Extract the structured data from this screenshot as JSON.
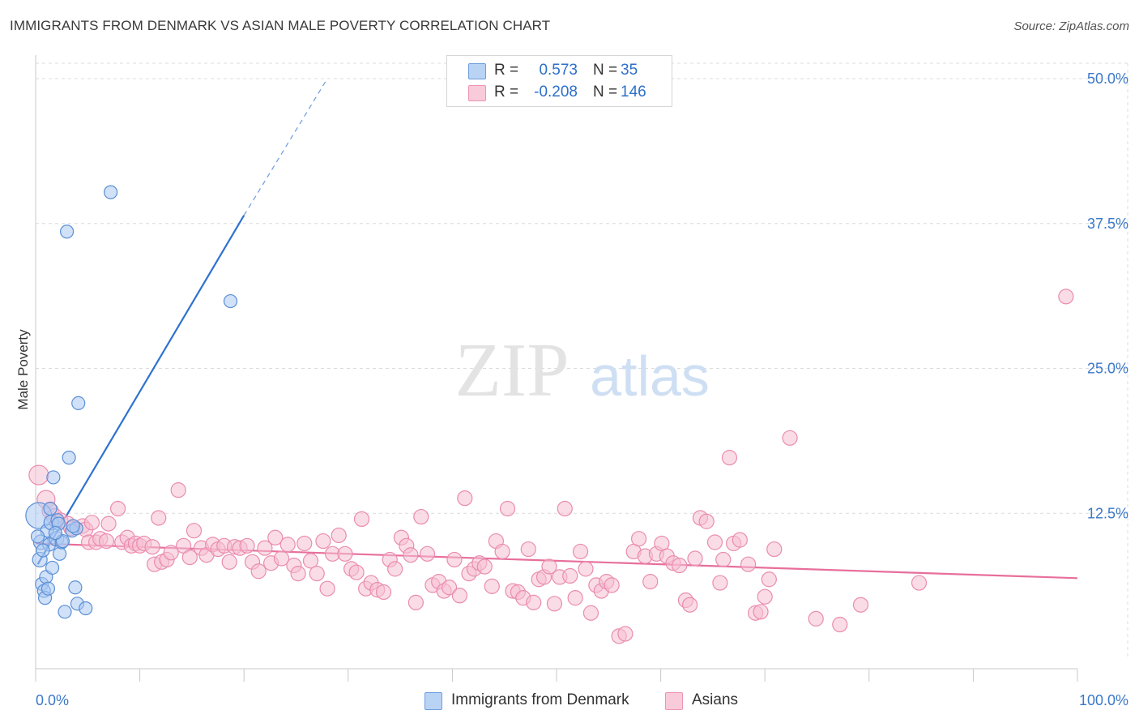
{
  "title": "IMMIGRANTS FROM DENMARK VS ASIAN MALE POVERTY CORRELATION CHART",
  "source": "Source: ZipAtlas.com",
  "watermark": {
    "zip": "ZIP",
    "atlas": "atlas"
  },
  "legend": {
    "r_label": "R =",
    "n_label": "N =",
    "rows": [
      {
        "r": "0.573",
        "n": "35"
      },
      {
        "r": "-0.208",
        "n": "146"
      }
    ]
  },
  "bottom_legend": [
    "Immigrants from Denmark",
    "Asians"
  ],
  "colors": {
    "blue_fill": "#a9c9f2",
    "blue_stroke": "#5b8fd6",
    "blue_line": "#2f72d0",
    "pink_fill": "#f6bfd2",
    "pink_stroke": "#ea8cae",
    "pink_line": "#e76f9b",
    "axis_label": "#3b78c9",
    "grid": "#dcdcdc"
  },
  "chart_data": {
    "type": "scatter",
    "title": "IMMIGRANTS FROM DENMARK VS ASIAN MALE POVERTY CORRELATION CHART",
    "xlabel": "",
    "ylabel": "Male Poverty",
    "xlim": [
      0,
      100
    ],
    "ylim": [
      0,
      50
    ],
    "x_tick_labels": [
      "0.0%",
      "100.0%"
    ],
    "y_ticks": [
      12.5,
      25.0,
      37.5,
      50.0
    ],
    "y_tick_labels": [
      "12.5%",
      "25.0%",
      "37.5%",
      "50.0%"
    ],
    "series": [
      {
        "name": "Immigrants from Denmark",
        "R": 0.573,
        "N": 35,
        "trend": {
          "x0": 0.2,
          "y0": 8.1,
          "x1": 20.0,
          "y1": 38.2,
          "dash_x1": 28.0,
          "dash_y1": 50.0
        },
        "points": [
          [
            0.3,
            12.3,
            16
          ],
          [
            0.5,
            10.0,
            9
          ],
          [
            0.4,
            8.5,
            9
          ],
          [
            0.6,
            6.4,
            8
          ],
          [
            0.8,
            5.8,
            8
          ],
          [
            1.0,
            7.0,
            8
          ],
          [
            1.1,
            11.0,
            8
          ],
          [
            1.3,
            9.8,
            8
          ],
          [
            1.5,
            11.7,
            9
          ],
          [
            1.7,
            15.6,
            8
          ],
          [
            1.6,
            7.8,
            8
          ],
          [
            2.0,
            10.3,
            9
          ],
          [
            2.1,
            11.9,
            8
          ],
          [
            2.3,
            9.0,
            8
          ],
          [
            2.5,
            10.0,
            8
          ],
          [
            2.8,
            4.0,
            8
          ],
          [
            3.2,
            17.3,
            8
          ],
          [
            3.0,
            36.8,
            8
          ],
          [
            3.5,
            11.0,
            8
          ],
          [
            3.8,
            6.1,
            8
          ],
          [
            4.1,
            22.0,
            8
          ],
          [
            4.0,
            4.7,
            8
          ],
          [
            4.8,
            4.3,
            8
          ],
          [
            7.2,
            40.2,
            8
          ],
          [
            18.7,
            30.8,
            8
          ],
          [
            0.9,
            5.2,
            8
          ],
          [
            1.2,
            6.0,
            8
          ],
          [
            2.6,
            10.1,
            8
          ],
          [
            3.9,
            11.2,
            8
          ],
          [
            1.4,
            12.9,
            8
          ],
          [
            0.7,
            9.3,
            8
          ],
          [
            2.2,
            11.6,
            8
          ],
          [
            0.2,
            10.5,
            8
          ],
          [
            1.9,
            10.8,
            8
          ],
          [
            3.6,
            11.4,
            8
          ]
        ]
      },
      {
        "name": "Asians",
        "R": -0.208,
        "N": 146,
        "trend": {
          "x0": 0.0,
          "y0": 9.9,
          "x1": 100.0,
          "y1": 6.9
        },
        "points": [
          [
            0.3,
            15.8,
            12
          ],
          [
            1.0,
            13.7,
            11
          ],
          [
            1.4,
            12.7,
            10
          ],
          [
            1.8,
            12.2,
            10
          ],
          [
            2.4,
            11.9,
            9
          ],
          [
            3.1,
            11.6,
            9
          ],
          [
            3.4,
            11.2,
            9
          ],
          [
            4.5,
            11.4,
            9
          ],
          [
            4.8,
            11.1,
            9
          ],
          [
            5.4,
            11.7,
            9
          ],
          [
            5.1,
            10.0,
            9
          ],
          [
            5.8,
            10.0,
            9
          ],
          [
            6.2,
            10.3,
            9
          ],
          [
            6.8,
            10.1,
            9
          ],
          [
            7.0,
            11.6,
            9
          ],
          [
            7.9,
            12.9,
            9
          ],
          [
            8.3,
            10.0,
            9
          ],
          [
            8.8,
            10.4,
            9
          ],
          [
            9.2,
            9.7,
            9
          ],
          [
            9.6,
            9.9,
            9
          ],
          [
            10.0,
            9.7,
            9
          ],
          [
            10.4,
            9.9,
            9
          ],
          [
            11.2,
            9.6,
            9
          ],
          [
            11.4,
            8.1,
            9
          ],
          [
            11.8,
            12.1,
            9
          ],
          [
            12.1,
            8.3,
            9
          ],
          [
            12.6,
            8.5,
            9
          ],
          [
            13.0,
            9.1,
            9
          ],
          [
            13.7,
            14.5,
            9
          ],
          [
            14.2,
            9.7,
            9
          ],
          [
            14.8,
            8.7,
            9
          ],
          [
            15.2,
            11.0,
            9
          ],
          [
            15.9,
            9.5,
            9
          ],
          [
            16.4,
            8.9,
            9
          ],
          [
            17.0,
            9.8,
            9
          ],
          [
            17.5,
            9.4,
            9
          ],
          [
            18.1,
            9.7,
            9
          ],
          [
            18.6,
            8.3,
            9
          ],
          [
            19.1,
            9.6,
            9
          ],
          [
            19.6,
            9.5,
            9
          ],
          [
            20.3,
            9.7,
            9
          ],
          [
            20.8,
            8.3,
            9
          ],
          [
            21.4,
            7.5,
            9
          ],
          [
            22.0,
            9.5,
            9
          ],
          [
            22.6,
            8.2,
            9
          ],
          [
            23.0,
            10.4,
            9
          ],
          [
            23.6,
            8.6,
            9
          ],
          [
            24.2,
            9.8,
            9
          ],
          [
            24.8,
            8.0,
            9
          ],
          [
            25.2,
            7.3,
            9
          ],
          [
            25.8,
            9.9,
            9
          ],
          [
            26.4,
            8.4,
            9
          ],
          [
            27.0,
            7.3,
            9
          ],
          [
            27.6,
            10.1,
            9
          ],
          [
            28.0,
            6.0,
            9
          ],
          [
            28.5,
            9.0,
            9
          ],
          [
            29.1,
            10.6,
            9
          ],
          [
            29.7,
            9.0,
            9
          ],
          [
            30.3,
            7.7,
            9
          ],
          [
            30.8,
            7.4,
            9
          ],
          [
            31.3,
            12.0,
            9
          ],
          [
            31.7,
            6.0,
            9
          ],
          [
            32.2,
            6.5,
            9
          ],
          [
            32.8,
            5.9,
            9
          ],
          [
            33.4,
            5.7,
            9
          ],
          [
            34.0,
            8.5,
            9
          ],
          [
            34.5,
            7.7,
            9
          ],
          [
            35.1,
            10.4,
            9
          ],
          [
            35.6,
            9.7,
            9
          ],
          [
            36.0,
            8.9,
            9
          ],
          [
            36.5,
            4.8,
            9
          ],
          [
            37.0,
            12.2,
            9
          ],
          [
            37.6,
            9.0,
            9
          ],
          [
            38.1,
            6.3,
            9
          ],
          [
            38.7,
            6.6,
            9
          ],
          [
            39.2,
            5.8,
            9
          ],
          [
            39.7,
            6.1,
            9
          ],
          [
            40.2,
            8.5,
            9
          ],
          [
            40.7,
            5.4,
            9
          ],
          [
            41.2,
            13.8,
            9
          ],
          [
            41.6,
            7.3,
            9
          ],
          [
            42.1,
            7.7,
            9
          ],
          [
            42.6,
            8.2,
            9
          ],
          [
            43.1,
            7.9,
            9
          ],
          [
            43.8,
            6.2,
            9
          ],
          [
            44.2,
            10.1,
            9
          ],
          [
            44.8,
            9.2,
            9
          ],
          [
            45.3,
            12.9,
            9
          ],
          [
            45.8,
            5.8,
            9
          ],
          [
            46.3,
            5.7,
            9
          ],
          [
            46.8,
            5.2,
            9
          ],
          [
            47.3,
            9.4,
            9
          ],
          [
            47.8,
            4.8,
            9
          ],
          [
            48.3,
            6.8,
            9
          ],
          [
            48.8,
            7.0,
            9
          ],
          [
            49.3,
            7.9,
            9
          ],
          [
            49.8,
            4.7,
            9
          ],
          [
            50.3,
            7.0,
            9
          ],
          [
            50.8,
            12.9,
            9
          ],
          [
            51.3,
            7.1,
            9
          ],
          [
            51.8,
            5.2,
            9
          ],
          [
            52.3,
            9.2,
            9
          ],
          [
            52.8,
            7.7,
            9
          ],
          [
            53.3,
            3.9,
            9
          ],
          [
            53.8,
            6.3,
            9
          ],
          [
            54.3,
            5.8,
            9
          ],
          [
            54.8,
            6.6,
            9
          ],
          [
            55.3,
            6.3,
            9
          ],
          [
            56.0,
            1.9,
            9
          ],
          [
            56.6,
            2.1,
            9
          ],
          [
            57.4,
            9.2,
            9
          ],
          [
            57.9,
            10.3,
            9
          ],
          [
            58.5,
            8.8,
            9
          ],
          [
            59.0,
            6.6,
            9
          ],
          [
            59.6,
            9.0,
            9
          ],
          [
            60.1,
            9.9,
            9
          ],
          [
            60.6,
            8.8,
            9
          ],
          [
            61.2,
            8.2,
            9
          ],
          [
            61.8,
            8.0,
            9
          ],
          [
            62.4,
            5.0,
            9
          ],
          [
            62.8,
            4.6,
            9
          ],
          [
            63.3,
            8.6,
            9
          ],
          [
            63.8,
            12.1,
            9
          ],
          [
            64.4,
            11.8,
            9
          ],
          [
            65.2,
            10.0,
            9
          ],
          [
            65.7,
            6.5,
            9
          ],
          [
            66.0,
            8.5,
            9
          ],
          [
            66.6,
            17.3,
            9
          ],
          [
            67.0,
            9.9,
            9
          ],
          [
            67.6,
            10.2,
            9
          ],
          [
            68.4,
            8.1,
            9
          ],
          [
            69.1,
            3.9,
            9
          ],
          [
            69.6,
            4.0,
            9
          ],
          [
            70.0,
            5.3,
            9
          ],
          [
            70.4,
            6.8,
            9
          ],
          [
            70.9,
            9.4,
            9
          ],
          [
            72.4,
            19.0,
            9
          ],
          [
            74.9,
            3.4,
            9
          ],
          [
            77.2,
            2.9,
            9
          ],
          [
            79.2,
            4.6,
            9
          ],
          [
            84.8,
            6.5,
            9
          ],
          [
            98.9,
            31.2,
            9
          ]
        ]
      }
    ]
  }
}
